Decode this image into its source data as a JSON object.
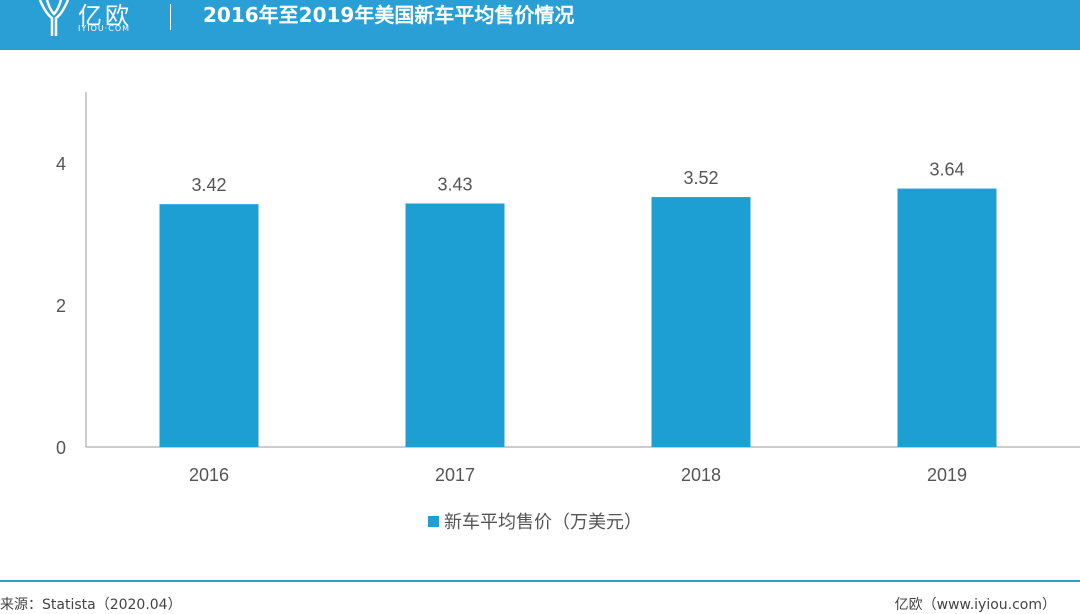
{
  "header": {
    "logo_text": "亿欧",
    "logo_sub": "IYIOU·COM",
    "title": "2016年至2019年美国新车平均售价情况"
  },
  "colors": {
    "brand": "#2a9fd6",
    "bar": "#1e9fd3"
  },
  "chart_data": {
    "type": "bar",
    "categories": [
      "2016",
      "2017",
      "2018",
      "2019"
    ],
    "series": [
      {
        "name": "新车平均售价（万美元）",
        "values": [
          3.42,
          3.43,
          3.52,
          3.64
        ]
      }
    ],
    "data_labels": [
      "3.42",
      "3.43",
      "3.52",
      "3.64"
    ],
    "yticks": [
      0,
      2,
      4
    ],
    "ylim": [
      0,
      5
    ],
    "title": "2016年至2019年美国新车平均售价情况",
    "xlabel": "",
    "ylabel": "",
    "legend": "bottom-center"
  },
  "footer": {
    "source": "来源：Statista（2020.04）",
    "credit": "亿欧（www.iyiou.com）"
  }
}
